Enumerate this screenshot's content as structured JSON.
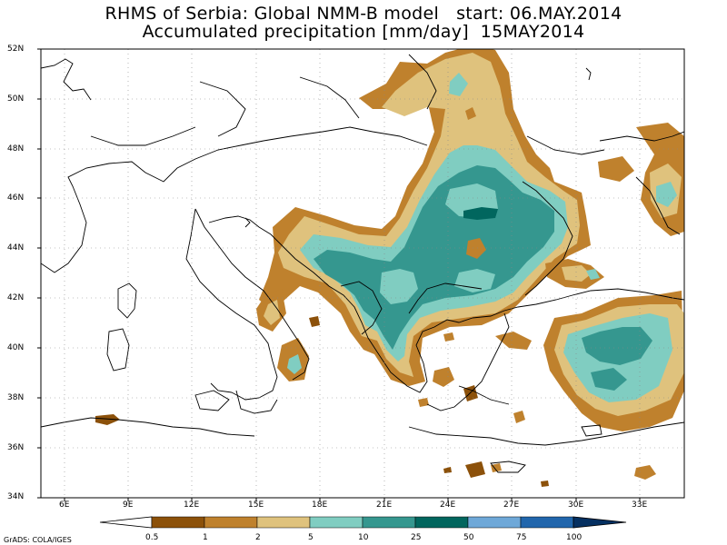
{
  "title_line1": "RHMS of Serbia: Global NMM-B model   start: 06.MAY.2014",
  "title_line2": "Accumulated precipitation [mm/day]  15MAY2014",
  "lat_labels": [
    "52N",
    "50N",
    "48N",
    "46N",
    "44N",
    "42N",
    "40N",
    "38N",
    "36N",
    "34N"
  ],
  "lon_labels": [
    "6E",
    "9E",
    "12E",
    "15E",
    "18E",
    "21E",
    "24E",
    "27E",
    "30E",
    "33E"
  ],
  "legend": {
    "levels": [
      "0.5",
      "1",
      "2",
      "5",
      "10",
      "25",
      "50",
      "75",
      "100"
    ],
    "colors": [
      "#8c510a",
      "#bf812d",
      "#dfc27d",
      "#80cdc1",
      "#35978f",
      "#01665e",
      "#6ea8d8",
      "#2166ac",
      "#053061"
    ]
  },
  "credit": "GrADS: COLA/IGES"
}
